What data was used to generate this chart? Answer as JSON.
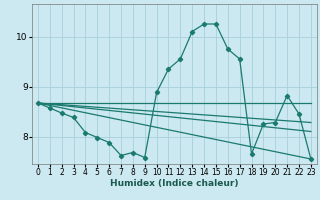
{
  "xlabel": "Humidex (Indice chaleur)",
  "background_color": "#cce8f0",
  "grid_color": "#a8d0dc",
  "line_color": "#1a7a6e",
  "xlim": [
    -0.5,
    23.5
  ],
  "ylim": [
    7.45,
    10.65
  ],
  "yticks": [
    8,
    9,
    10
  ],
  "xticks": [
    0,
    1,
    2,
    3,
    4,
    5,
    6,
    7,
    8,
    9,
    10,
    11,
    12,
    13,
    14,
    15,
    16,
    17,
    18,
    19,
    20,
    21,
    22,
    23
  ],
  "line1_x": [
    0,
    23
  ],
  "line1_y": [
    8.67,
    8.67
  ],
  "line2_x": [
    0,
    23
  ],
  "line2_y": [
    8.67,
    8.28
  ],
  "line3_x": [
    0,
    23
  ],
  "line3_y": [
    8.67,
    8.1
  ],
  "line4_x": [
    0,
    23
  ],
  "line4_y": [
    8.67,
    7.55
  ],
  "curve_x": [
    0,
    1,
    2,
    3,
    4,
    5,
    6,
    7,
    8,
    9,
    10,
    11,
    12,
    13,
    14,
    15,
    16,
    17,
    18,
    19,
    20,
    21,
    22,
    23
  ],
  "curve_y": [
    8.67,
    8.57,
    8.47,
    8.38,
    8.08,
    7.98,
    7.88,
    7.62,
    7.68,
    7.58,
    8.88,
    9.35,
    9.55,
    10.1,
    10.25,
    10.25,
    9.75,
    9.55,
    7.65,
    8.25,
    8.28,
    8.82,
    8.45,
    7.55
  ]
}
